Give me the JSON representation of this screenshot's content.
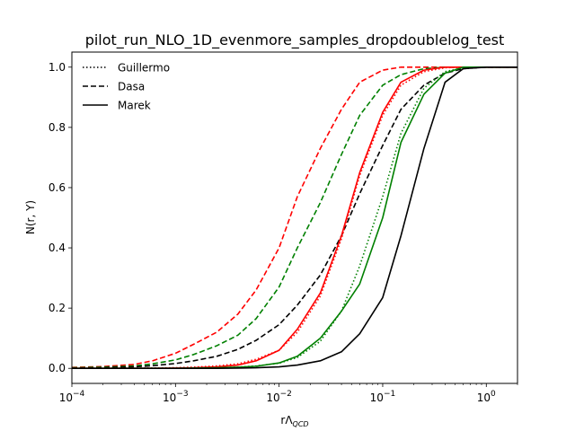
{
  "chart_data": {
    "type": "line",
    "title": "pilot_run_NLO_1D_evenmore_samples_dropdoublelog_test",
    "xlabel_main": "rΛ",
    "xlabel_sub": "QCD",
    "ylabel": "N(r, Y)",
    "xscale": "log",
    "xlim": [
      0.0001,
      2
    ],
    "ylim": [
      -0.05,
      1.05
    ],
    "x_ticks": [
      0.0001,
      0.001,
      0.01,
      0.1,
      1
    ],
    "x_tick_labels": [
      {
        "base": "10",
        "exp": "−4"
      },
      {
        "base": "10",
        "exp": "−3"
      },
      {
        "base": "10",
        "exp": "−2"
      },
      {
        "base": "10",
        "exp": "−1"
      },
      {
        "base": "10",
        "exp": "0"
      }
    ],
    "y_ticks": [
      0.0,
      0.2,
      0.4,
      0.6,
      0.8,
      1.0
    ],
    "y_tick_labels": [
      "0.0",
      "0.2",
      "0.4",
      "0.6",
      "0.8",
      "1.0"
    ],
    "grid": false,
    "legend_position": "top-left",
    "legend": [
      {
        "label": "Guillermo",
        "dash": "dotted"
      },
      {
        "label": "Dasa",
        "dash": "dashed"
      },
      {
        "label": "Marek",
        "dash": "solid"
      }
    ],
    "x": [
      0.0001,
      0.0002,
      0.0004,
      0.0006,
      0.001,
      0.0015,
      0.0025,
      0.004,
      0.006,
      0.01,
      0.015,
      0.025,
      0.04,
      0.06,
      0.1,
      0.15,
      0.25,
      0.4,
      0.6,
      1,
      2
    ],
    "series": [
      {
        "color": "#ff0000",
        "dash": "dashed",
        "values": [
          0.003,
          0.006,
          0.013,
          0.025,
          0.05,
          0.08,
          0.12,
          0.18,
          0.26,
          0.4,
          0.57,
          0.73,
          0.86,
          0.95,
          0.99,
          1.0,
          1.0,
          1.0,
          1.0,
          1.0,
          1.0
        ]
      },
      {
        "color": "#008000",
        "dash": "dashed",
        "values": [
          0.002,
          0.004,
          0.008,
          0.015,
          0.028,
          0.046,
          0.075,
          0.11,
          0.165,
          0.27,
          0.4,
          0.55,
          0.71,
          0.84,
          0.94,
          0.975,
          0.995,
          1.0,
          1.0,
          1.0,
          1.0
        ]
      },
      {
        "color": "#000000",
        "dash": "dashed",
        "values": [
          0.001,
          0.002,
          0.005,
          0.009,
          0.016,
          0.025,
          0.04,
          0.063,
          0.093,
          0.145,
          0.21,
          0.31,
          0.44,
          0.58,
          0.74,
          0.86,
          0.94,
          0.98,
          0.995,
          1.0,
          1.0
        ]
      },
      {
        "color": "#ff0000",
        "dash": "dotted",
        "values": [
          0.0,
          0.0,
          0.0,
          0.001,
          0.002,
          0.004,
          0.008,
          0.015,
          0.03,
          0.06,
          0.12,
          0.24,
          0.43,
          0.64,
          0.84,
          0.94,
          0.985,
          0.998,
          1.0,
          1.0,
          1.0
        ]
      },
      {
        "color": "#008000",
        "dash": "dotted",
        "values": [
          0.0,
          0.0,
          0.0,
          0.0,
          0.0,
          0.001,
          0.002,
          0.004,
          0.008,
          0.017,
          0.036,
          0.09,
          0.19,
          0.34,
          0.57,
          0.78,
          0.93,
          0.985,
          0.998,
          1.0,
          1.0
        ]
      },
      {
        "color": "#ff0000",
        "dash": "solid",
        "values": [
          0.0,
          0.0,
          0.0,
          0.0,
          0.001,
          0.002,
          0.005,
          0.011,
          0.025,
          0.06,
          0.13,
          0.25,
          0.44,
          0.65,
          0.85,
          0.95,
          0.99,
          1.0,
          1.0,
          1.0,
          1.0
        ]
      },
      {
        "color": "#008000",
        "dash": "solid",
        "values": [
          0.0,
          0.0,
          0.0,
          0.0,
          0.0,
          0.001,
          0.002,
          0.004,
          0.007,
          0.018,
          0.04,
          0.1,
          0.19,
          0.28,
          0.5,
          0.75,
          0.91,
          0.98,
          1.0,
          1.0,
          1.0
        ]
      },
      {
        "color": "#000000",
        "dash": "solid",
        "values": [
          0.0,
          0.0,
          0.0,
          0.0,
          0.0,
          0.0,
          0.0,
          0.001,
          0.002,
          0.005,
          0.011,
          0.025,
          0.055,
          0.115,
          0.235,
          0.44,
          0.73,
          0.95,
          0.995,
          1.0,
          1.0
        ]
      }
    ]
  }
}
